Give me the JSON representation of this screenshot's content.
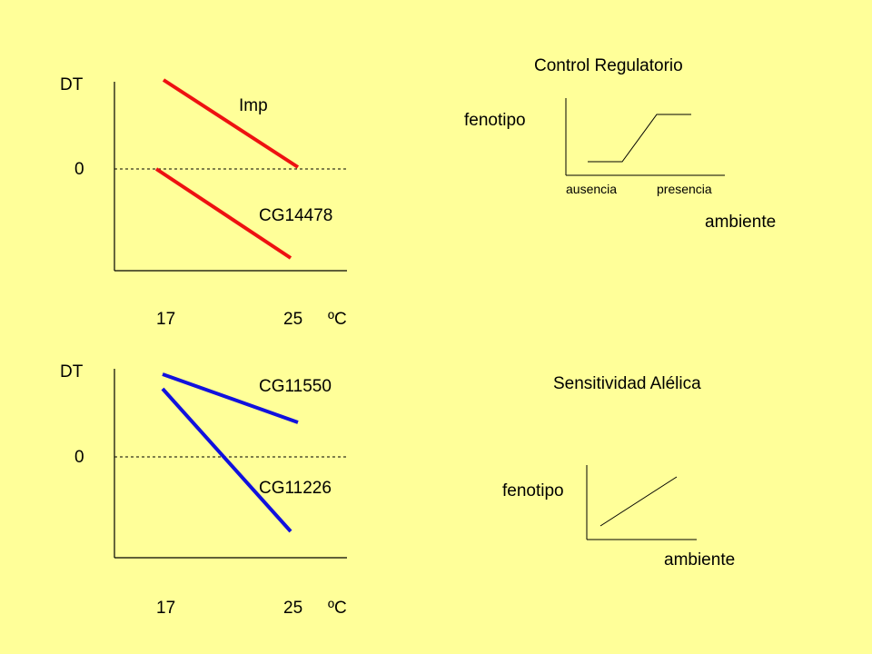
{
  "top_left": {
    "y_label": "DT",
    "zero_label": "0",
    "x_tick_1": "17",
    "x_tick_2": "25",
    "unit": "ºC",
    "line_1_label": "Imp",
    "line_2_label": "CG14478",
    "line_color": "#ee1111"
  },
  "bottom_left": {
    "y_label": "DT",
    "zero_label": "0",
    "x_tick_1": "17",
    "x_tick_2": "25",
    "unit": "ºC",
    "line_1_label": "CG11550",
    "line_2_label": "CG11226",
    "line_color": "#1111dd"
  },
  "top_right": {
    "title": "Control Regulatorio",
    "y_label": "fenotipo",
    "x_label": "ambiente",
    "x_cat_1": "ausencia",
    "x_cat_2": "presencia"
  },
  "bottom_right": {
    "title": "Sensitividad Alélica",
    "y_label": "fenotipo",
    "x_label": "ambiente"
  }
}
